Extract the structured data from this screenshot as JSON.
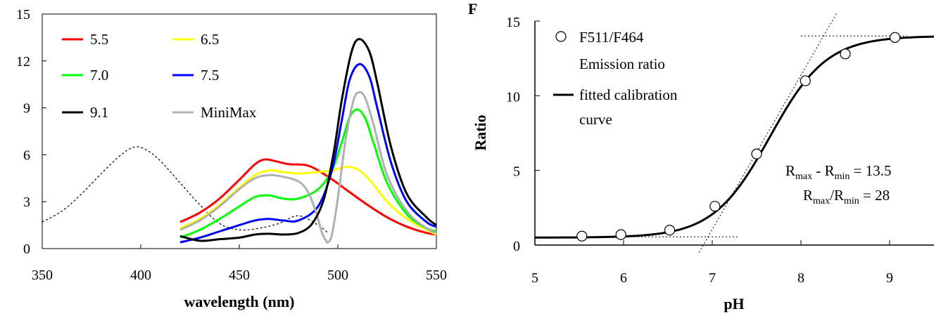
{
  "chart_data": [
    {
      "type": "line",
      "xlabel": "wavelength (nm)",
      "ylabel": "",
      "xlim": [
        350,
        550
      ],
      "ylim": [
        0,
        15
      ],
      "x_ticks": [
        "350",
        "400",
        "450",
        "500",
        "550"
      ],
      "y_ticks": [
        "0",
        "3",
        "6",
        "9",
        "12",
        "15"
      ],
      "legend": "top-left",
      "grid": false,
      "series": [
        {
          "name": "5.5",
          "color": "#ff0000",
          "x": [
            420,
            430,
            440,
            450,
            458,
            463,
            468,
            475,
            485,
            495,
            505,
            515,
            525,
            535,
            545,
            550
          ],
          "y": [
            1.7,
            2.3,
            3.2,
            4.4,
            5.4,
            5.7,
            5.6,
            5.4,
            5.3,
            4.6,
            3.7,
            2.8,
            2.0,
            1.4,
            1.0,
            0.9
          ]
        },
        {
          "name": "6.5",
          "color": "#ffff00",
          "x": [
            420,
            430,
            440,
            450,
            458,
            465,
            472,
            480,
            490,
            497,
            503,
            507,
            512,
            518,
            525,
            535,
            545,
            550
          ],
          "y": [
            1.3,
            1.9,
            2.8,
            3.9,
            4.7,
            5.0,
            4.9,
            4.8,
            4.9,
            5.0,
            5.2,
            5.2,
            4.9,
            4.1,
            3.0,
            1.9,
            1.2,
            0.9
          ]
        },
        {
          "name": "7.0",
          "color": "#00ff00",
          "x": [
            420,
            430,
            440,
            450,
            458,
            465,
            472,
            480,
            490,
            497,
            502,
            506,
            510,
            514,
            518,
            525,
            535,
            545,
            550
          ],
          "y": [
            0.7,
            1.2,
            1.9,
            2.7,
            3.3,
            3.4,
            3.2,
            3.2,
            3.8,
            5.0,
            6.8,
            8.4,
            8.9,
            8.3,
            6.8,
            4.2,
            2.2,
            1.3,
            1.1
          ]
        },
        {
          "name": "7.5",
          "color": "#0000ff",
          "x": [
            420,
            430,
            440,
            450,
            458,
            465,
            472,
            480,
            490,
            497,
            502,
            506,
            511,
            516,
            520,
            527,
            535,
            545,
            550
          ],
          "y": [
            0.4,
            0.7,
            1.1,
            1.5,
            1.8,
            1.9,
            1.8,
            1.8,
            2.7,
            5.0,
            8.2,
            10.8,
            11.8,
            11.0,
            9.0,
            5.5,
            3.0,
            1.7,
            1.4
          ]
        },
        {
          "name": "9.1",
          "color": "#000000",
          "x": [
            420,
            430,
            440,
            450,
            458,
            465,
            472,
            480,
            487,
            493,
            498,
            502,
            507,
            511,
            516,
            520,
            527,
            535,
            545,
            550
          ],
          "y": [
            0.8,
            0.5,
            0.6,
            0.7,
            0.9,
            0.95,
            0.9,
            1.0,
            1.6,
            3.2,
            6.2,
            9.5,
            12.6,
            13.4,
            12.6,
            10.6,
            6.5,
            3.5,
            2.0,
            1.5
          ]
        },
        {
          "name": "MiniMax",
          "color": "#b0b0b0",
          "x": [
            420,
            430,
            440,
            450,
            458,
            465,
            472,
            480,
            485,
            489,
            492,
            494,
            495,
            497,
            500,
            504,
            508,
            511,
            514,
            518,
            525,
            535,
            545,
            550
          ],
          "y": [
            1.2,
            1.8,
            2.7,
            3.8,
            4.5,
            4.7,
            4.6,
            4.3,
            3.6,
            2.3,
            1.0,
            0.5,
            0.4,
            0.9,
            3.2,
            7.0,
            9.5,
            10.0,
            9.6,
            8.0,
            4.7,
            2.4,
            1.3,
            1.0
          ]
        },
        {
          "name": "",
          "color": "#000000",
          "style": "dashed",
          "x": [
            350,
            360,
            370,
            380,
            390,
            397,
            403,
            410,
            420,
            430,
            440,
            450,
            460,
            470,
            480,
            490,
            495
          ],
          "y": [
            1.7,
            2.4,
            3.5,
            4.8,
            6.0,
            6.5,
            6.3,
            5.6,
            4.2,
            2.8,
            1.6,
            1.2,
            1.3,
            1.6,
            2.1,
            1.5,
            1.0
          ]
        }
      ]
    },
    {
      "type": "scatter",
      "panel_label": "F",
      "xlabel": "pH",
      "ylabel": "Ratio",
      "xlim": [
        5,
        9.5
      ],
      "ylim": [
        0,
        15
      ],
      "x_ticks": [
        "5",
        "6",
        "7",
        "8",
        "9"
      ],
      "y_ticks": [
        "0",
        "5",
        "10",
        "15"
      ],
      "legend": "top-left",
      "grid": false,
      "points": {
        "name": "F511/F464",
        "name_line2": "Emission ratio",
        "x": [
          5.53,
          5.97,
          6.52,
          7.03,
          7.5,
          8.05,
          8.5,
          9.06
        ],
        "y": [
          0.6,
          0.7,
          1.0,
          2.6,
          6.1,
          11.0,
          12.8,
          13.9
        ]
      },
      "fit_curve": {
        "name": "fitted calibration",
        "name_line2": "curve",
        "params": {
          "min": 0.5,
          "max": 14.0,
          "pKa": 7.65,
          "slope": 0.32
        }
      },
      "guide_lines": [
        {
          "x": [
            6.0,
            7.3
          ],
          "y": [
            0.55,
            0.55
          ]
        },
        {
          "x": [
            8.0,
            9.2
          ],
          "y": [
            14.0,
            14.0
          ]
        },
        {
          "x": [
            6.85,
            8.4
          ],
          "y": [
            -0.5,
            15.5
          ]
        }
      ],
      "annotations": {
        "line1_a": "R",
        "line1_a_sub": "max",
        "line1_b": " - R",
        "line1_b_sub": "min",
        "line1_c": " = 13.5",
        "line2_a": "R",
        "line2_a_sub": "max",
        "line2_b": "/R",
        "line2_b_sub": "min",
        "line2_c": " = 28"
      }
    }
  ]
}
